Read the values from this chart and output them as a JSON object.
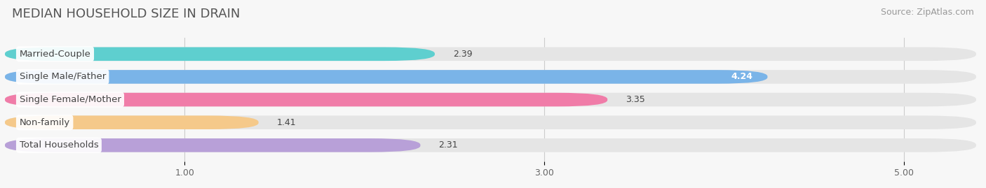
{
  "title": "MEDIAN HOUSEHOLD SIZE IN DRAIN",
  "source": "Source: ZipAtlas.com",
  "categories": [
    "Married-Couple",
    "Single Male/Father",
    "Single Female/Mother",
    "Non-family",
    "Total Households"
  ],
  "values": [
    2.39,
    4.24,
    3.35,
    1.41,
    2.31
  ],
  "bar_colors": [
    "#5ecfcf",
    "#7ab4e8",
    "#f07ca8",
    "#f5c98a",
    "#b8a0d8"
  ],
  "xlim": [
    0,
    5.4
  ],
  "xticks": [
    1.0,
    3.0,
    5.0
  ],
  "label_fontsize": 9.5,
  "value_fontsize": 9,
  "title_fontsize": 13,
  "source_fontsize": 9,
  "background_color": "#f7f7f7",
  "bar_bg_color": "#e5e5e5",
  "value_colors": [
    "#555555",
    "#ffffff",
    "#555555",
    "#555555",
    "#555555"
  ]
}
